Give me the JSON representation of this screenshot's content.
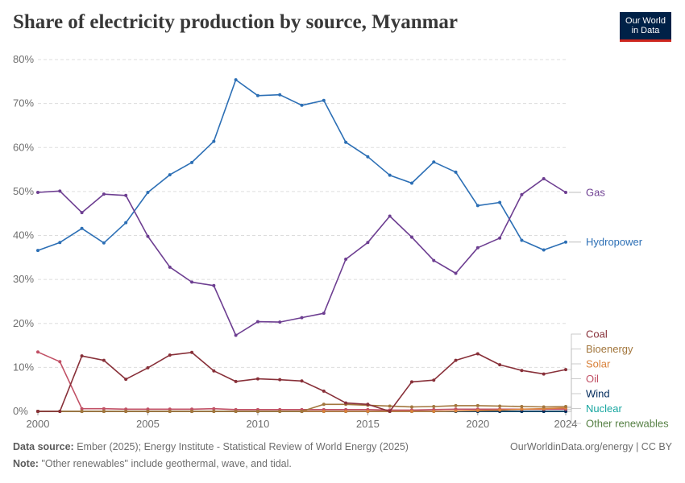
{
  "title": "Share of electricity production by source, Myanmar",
  "logo": {
    "line1": "Our World",
    "line2": "in Data"
  },
  "footer": {
    "source_label": "Data source:",
    "source_text": "Ember (2025); Energy Institute - Statistical Review of World Energy (2025)",
    "credit": "OurWorldinData.org/energy | CC BY",
    "note_label": "Note:",
    "note_text": "\"Other renewables\" include geothermal, wave, and tidal."
  },
  "chart_data": {
    "type": "line",
    "title": "Share of electricity production by source, Myanmar",
    "xlabel": "",
    "ylabel": "",
    "xlim": [
      2000,
      2024
    ],
    "ylim": [
      0,
      80
    ],
    "x_ticks": [
      2000,
      2005,
      2010,
      2015,
      2020,
      2024
    ],
    "y_ticks": [
      0,
      10,
      20,
      30,
      40,
      50,
      60,
      70,
      80
    ],
    "y_tick_labels": [
      "0%",
      "10%",
      "20%",
      "30%",
      "40%",
      "50%",
      "60%",
      "70%",
      "80%"
    ],
    "grid": true,
    "x": [
      2000,
      2001,
      2002,
      2003,
      2004,
      2005,
      2006,
      2007,
      2008,
      2009,
      2010,
      2011,
      2012,
      2013,
      2014,
      2015,
      2016,
      2017,
      2018,
      2019,
      2020,
      2021,
      2022,
      2023,
      2024
    ],
    "series": [
      {
        "name": "Gas",
        "color": "#6d3e91",
        "values": [
          49.8,
          50.1,
          45.2,
          49.4,
          49.1,
          39.8,
          32.8,
          29.4,
          28.6,
          17.3,
          20.4,
          20.3,
          21.3,
          22.3,
          34.6,
          38.4,
          44.4,
          39.6,
          34.3,
          31.4,
          37.2,
          39.4,
          49.3,
          52.9,
          49.8
        ]
      },
      {
        "name": "Hydropower",
        "color": "#2c6fb5",
        "values": [
          36.6,
          38.4,
          41.6,
          38.3,
          42.9,
          49.8,
          53.8,
          56.6,
          61.4,
          75.4,
          71.8,
          72.0,
          69.6,
          70.7,
          61.2,
          57.9,
          53.7,
          51.9,
          56.7,
          54.4,
          46.8,
          47.5,
          38.9,
          36.7,
          38.5
        ]
      },
      {
        "name": "Coal",
        "color": "#883039",
        "values": [
          0,
          0,
          12.6,
          11.6,
          7.3,
          9.9,
          12.8,
          13.4,
          9.2,
          6.8,
          7.4,
          7.2,
          6.9,
          4.6,
          1.9,
          1.6,
          0,
          6.7,
          7.1,
          11.6,
          13.1,
          10.6,
          9.3,
          8.5,
          9.5
        ]
      },
      {
        "name": "Bioenergy",
        "color": "#a2763d",
        "values": [
          0,
          0,
          0,
          0,
          0,
          0,
          0,
          0,
          0,
          0,
          0,
          0,
          0,
          1.6,
          1.6,
          1.4,
          1.2,
          1.0,
          1.1,
          1.3,
          1.3,
          1.2,
          1.1,
          1.0,
          1.1
        ]
      },
      {
        "name": "Solar",
        "color": "#d9823b",
        "values": [
          0,
          0,
          0,
          0,
          0,
          0,
          0,
          0,
          0,
          0,
          0,
          0,
          0,
          0,
          0,
          0,
          0,
          0,
          0,
          0.1,
          0.2,
          0.3,
          0.5,
          0.6,
          0.8
        ]
      },
      {
        "name": "Oil",
        "color": "#c15065",
        "values": [
          13.5,
          11.3,
          0.6,
          0.6,
          0.5,
          0.5,
          0.5,
          0.5,
          0.6,
          0.4,
          0.4,
          0.4,
          0.4,
          0.4,
          0.4,
          0.4,
          0.3,
          0.3,
          0.4,
          0.5,
          0.5,
          0.5,
          0.5,
          0.5,
          0.5
        ]
      },
      {
        "name": "Wind",
        "color": "#00295b",
        "values": [
          0,
          0,
          0,
          0,
          0,
          0,
          0,
          0,
          0,
          0,
          0,
          0,
          0,
          0,
          0,
          0,
          0,
          0,
          0,
          0,
          0,
          0,
          0,
          0,
          0
        ]
      },
      {
        "name": "Nuclear",
        "color": "#18a6a0",
        "values": [
          0,
          0,
          0,
          0,
          0,
          0,
          0,
          0,
          0,
          0,
          0,
          0,
          0,
          0,
          0,
          0,
          0,
          0,
          0,
          0,
          0,
          0,
          0,
          0,
          0
        ]
      },
      {
        "name": "Other renewables",
        "color": "#578145",
        "values": [
          0,
          0,
          0,
          0,
          0,
          0,
          0,
          0,
          0,
          0,
          0,
          0,
          0,
          0,
          0,
          0,
          0,
          0,
          0,
          0,
          0,
          0,
          0,
          0,
          0
        ]
      }
    ]
  }
}
